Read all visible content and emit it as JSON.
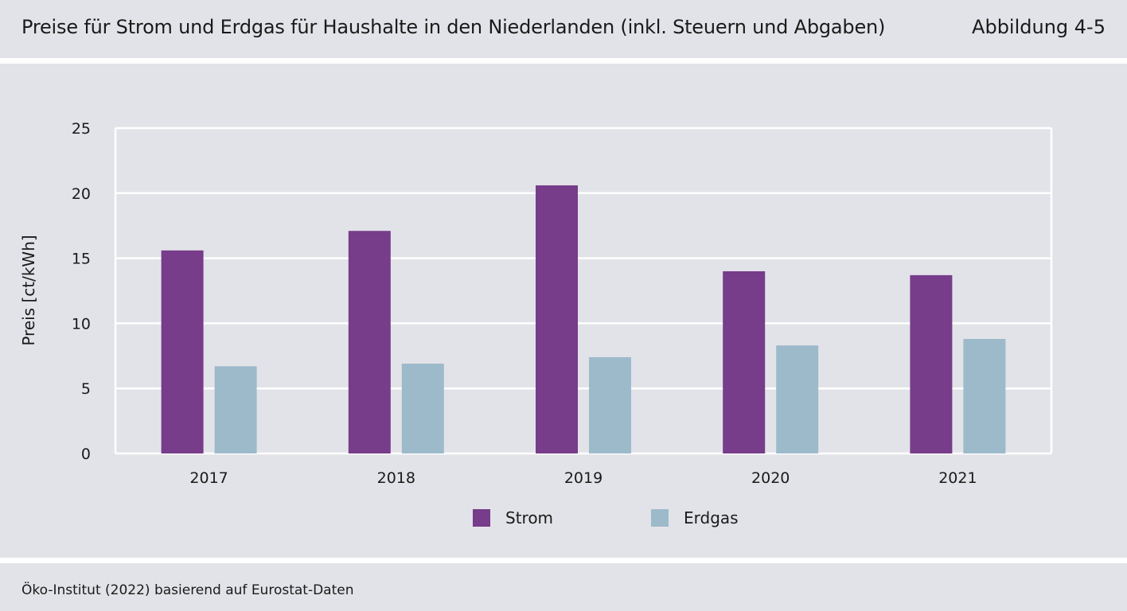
{
  "header": {
    "title": "Preise für Strom und Erdgas für Haushalte in den Niederlanden (inkl. Steuern und Abgaben)",
    "figure_label": "Abbildung 4-5"
  },
  "footer": {
    "source": "Öko-Institut (2022) basierend auf Eurostat-Daten"
  },
  "colors": {
    "background": "#e2e3e8",
    "gridline": "#ffffff",
    "strom": "#773c8a",
    "erdgas": "#9dbacb"
  },
  "chart_data": {
    "type": "bar",
    "title": "Preise für Strom und Erdgas für Haushalte in den Niederlanden (inkl. Steuern und Abgaben)",
    "xlabel": "",
    "ylabel": "Preis [ct/kWh]",
    "ylim": [
      0,
      25
    ],
    "yticks": [
      "0",
      "5",
      "10",
      "15",
      "20",
      "25"
    ],
    "categories": [
      "2017",
      "2018",
      "2019",
      "2020",
      "2021"
    ],
    "series": [
      {
        "name": "Strom",
        "color": "#773c8a",
        "values": [
          15.6,
          17.1,
          20.6,
          14.0,
          13.7
        ]
      },
      {
        "name": "Erdgas",
        "color": "#9dbacb",
        "values": [
          6.7,
          6.9,
          7.4,
          8.3,
          8.8
        ]
      }
    ],
    "grid": true,
    "legend": "bottom-center"
  }
}
